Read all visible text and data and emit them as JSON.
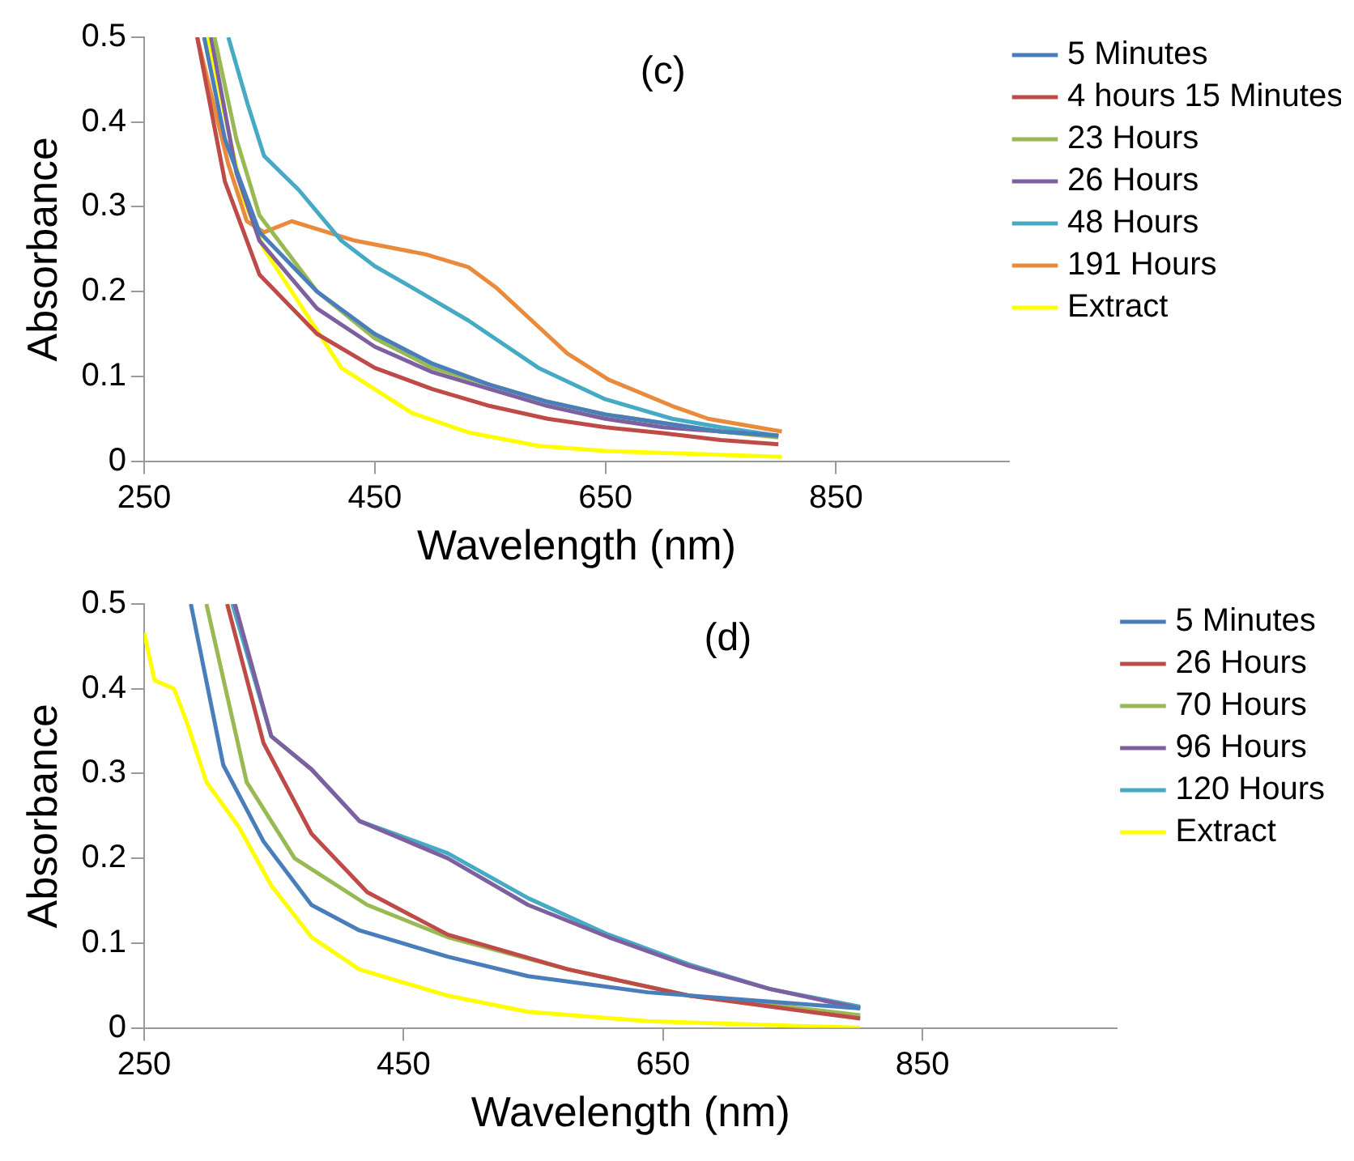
{
  "chart_data": [
    {
      "type": "line",
      "xlabel": "Wavelength (nm)",
      "ylabel": "Absorbance",
      "annotations": [
        "(c)"
      ],
      "xlim": [
        250,
        1000
      ],
      "xticks": [
        250,
        450,
        650,
        850
      ],
      "ylim": [
        0,
        0.5
      ],
      "yticks": [
        0,
        0.1,
        0.2,
        0.3,
        0.4,
        0.5
      ],
      "grid": false,
      "legend": "right",
      "marker": "none",
      "line_style": "solid",
      "series": [
        {
          "name": "5 Minutes",
          "color": "#4a7ebb",
          "x": [
            302,
            320,
            350,
            400,
            450,
            500,
            550,
            600,
            650,
            700,
            750,
            800
          ],
          "values": [
            0.5,
            0.38,
            0.27,
            0.2,
            0.15,
            0.115,
            0.09,
            0.07,
            0.055,
            0.045,
            0.035,
            0.03
          ]
        },
        {
          "name": "4 hours 15 Minutes",
          "color": "#be4b48",
          "x": [
            296,
            320,
            350,
            400,
            450,
            500,
            550,
            600,
            650,
            700,
            750,
            800
          ],
          "values": [
            0.5,
            0.33,
            0.22,
            0.15,
            0.11,
            0.085,
            0.065,
            0.05,
            0.04,
            0.033,
            0.025,
            0.02
          ]
        },
        {
          "name": "23 Hours",
          "color": "#98b954",
          "x": [
            311,
            330,
            350,
            400,
            450,
            500,
            550,
            600,
            650,
            700,
            750,
            800
          ],
          "values": [
            0.5,
            0.38,
            0.29,
            0.2,
            0.145,
            0.11,
            0.09,
            0.07,
            0.055,
            0.045,
            0.035,
            0.028
          ]
        },
        {
          "name": "26 Hours",
          "color": "#7d60a0",
          "x": [
            308,
            330,
            350,
            400,
            450,
            500,
            550,
            600,
            650,
            700,
            750,
            800
          ],
          "values": [
            0.5,
            0.34,
            0.26,
            0.18,
            0.135,
            0.105,
            0.085,
            0.065,
            0.05,
            0.04,
            0.035,
            0.03
          ]
        },
        {
          "name": "48 Hours",
          "color": "#46aac5",
          "x": [
            323,
            340,
            354,
            384,
            421,
            450,
            482,
            531,
            592,
            650,
            708,
            750,
            800
          ],
          "values": [
            0.5,
            0.42,
            0.36,
            0.32,
            0.26,
            0.23,
            0.205,
            0.166,
            0.11,
            0.073,
            0.05,
            0.04,
            0.03
          ]
        },
        {
          "name": "191 Hours",
          "color": "#e98a3c",
          "x": [
            296,
            323,
            339,
            354,
            378,
            397,
            433,
            494,
            531,
            555,
            586,
            617,
            653,
            708,
            739,
            803
          ],
          "values": [
            0.5,
            0.35,
            0.283,
            0.27,
            0.283,
            0.275,
            0.26,
            0.244,
            0.229,
            0.205,
            0.166,
            0.127,
            0.096,
            0.065,
            0.05,
            0.035
          ]
        },
        {
          "name": "Extract",
          "color": "#ffff00",
          "x": [
            305,
            336,
            354,
            378,
            421,
            482,
            531,
            592,
            650,
            803
          ],
          "values": [
            0.5,
            0.31,
            0.25,
            0.2,
            0.11,
            0.057,
            0.034,
            0.018,
            0.012,
            0.005
          ]
        }
      ]
    },
    {
      "type": "line",
      "xlabel": "Wavelength (nm)",
      "ylabel": "Absorbance",
      "annotations": [
        "(d)"
      ],
      "xlim": [
        250,
        1000
      ],
      "xticks": [
        250,
        450,
        650,
        850
      ],
      "ylim": [
        0,
        0.5
      ],
      "yticks": [
        0,
        0.1,
        0.2,
        0.3,
        0.4,
        0.5
      ],
      "grid": false,
      "legend": "right",
      "marker": "none",
      "line_style": "solid",
      "series": [
        {
          "name": "5 Minutes",
          "color": "#4a7ebb",
          "x": [
            286,
            311,
            342,
            379,
            416,
            484,
            546,
            638,
            802
          ],
          "values": [
            0.5,
            0.31,
            0.22,
            0.145,
            0.115,
            0.084,
            0.061,
            0.042,
            0.023
          ]
        },
        {
          "name": "26 Hours",
          "color": "#be4b48",
          "x": [
            314,
            342,
            379,
            422,
            484,
            577,
            670,
            802
          ],
          "values": [
            0.5,
            0.336,
            0.229,
            0.16,
            0.11,
            0.069,
            0.038,
            0.011
          ]
        },
        {
          "name": "70 Hours",
          "color": "#98b954",
          "x": [
            298,
            329,
            366,
            422,
            484,
            577,
            670,
            802
          ],
          "values": [
            0.5,
            0.29,
            0.2,
            0.145,
            0.107,
            0.069,
            0.038,
            0.015
          ]
        },
        {
          "name": "96 Hours",
          "color": "#7d60a0",
          "x": [
            320,
            348,
            379,
            416,
            484,
            546,
            608,
            670,
            732,
            802
          ],
          "values": [
            0.5,
            0.344,
            0.305,
            0.244,
            0.2,
            0.145,
            0.107,
            0.073,
            0.046,
            0.023
          ]
        },
        {
          "name": "120 Hours",
          "color": "#46aac5",
          "x": [
            318,
            348,
            379,
            416,
            484,
            546,
            608,
            670,
            732,
            802
          ],
          "values": [
            0.5,
            0.344,
            0.305,
            0.244,
            0.206,
            0.153,
            0.11,
            0.075,
            0.046,
            0.025
          ]
        },
        {
          "name": "Extract",
          "color": "#ffff00",
          "x": [
            250,
            258,
            273,
            283,
            298,
            323,
            348,
            379,
            416,
            484,
            546,
            638,
            802
          ],
          "values": [
            0.466,
            0.41,
            0.4,
            0.36,
            0.29,
            0.237,
            0.168,
            0.107,
            0.069,
            0.038,
            0.019,
            0.008,
            0
          ]
        }
      ]
    }
  ]
}
